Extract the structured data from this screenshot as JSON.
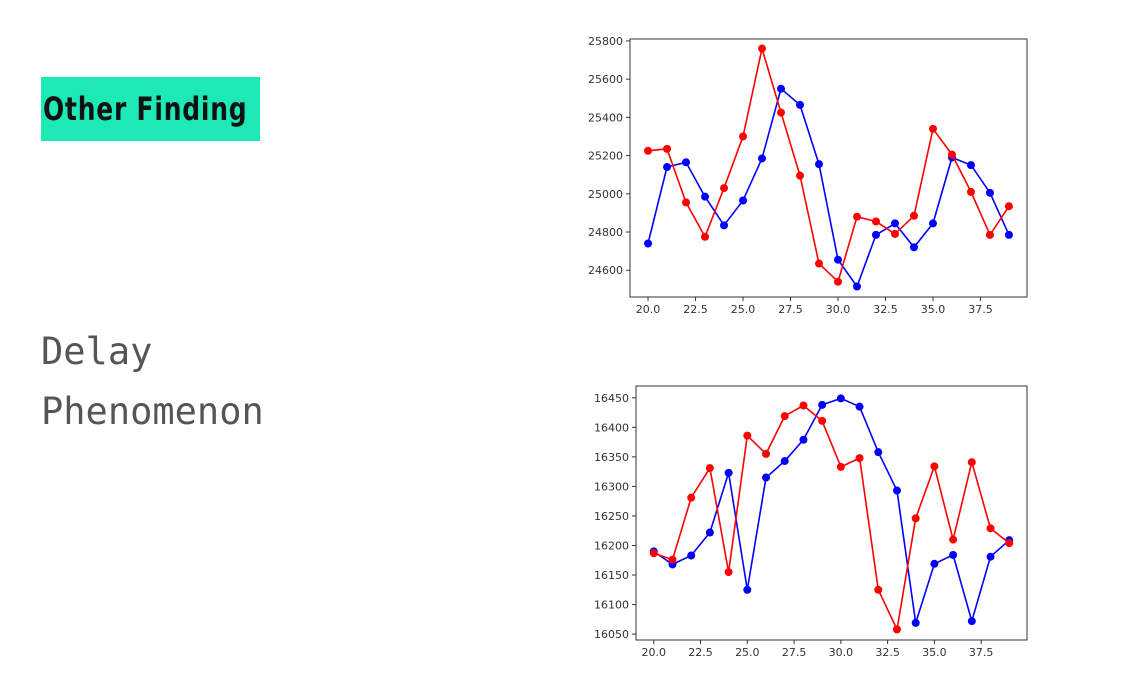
{
  "slide": {
    "heading": "Other Finding",
    "subtitle_lines": [
      "Delay",
      "Phenomenon"
    ],
    "accent_color": "#1de9b6"
  },
  "chart_data": [
    {
      "type": "line",
      "x": [
        20,
        21,
        22,
        23,
        24,
        25,
        26,
        27,
        28,
        29,
        30,
        31,
        32,
        33,
        34,
        35,
        36,
        37,
        38,
        39
      ],
      "xlim": [
        19.05,
        39.95
      ],
      "ylim": [
        24460,
        25810
      ],
      "x_ticks": [
        20.0,
        22.5,
        25.0,
        27.5,
        30.0,
        32.5,
        35.0,
        37.5
      ],
      "x_tick_labels": [
        "20.0",
        "22.5",
        "25.0",
        "27.5",
        "30.0",
        "32.5",
        "35.0",
        "37.5"
      ],
      "y_ticks": [
        24600,
        24800,
        25000,
        25200,
        25400,
        25600,
        25800
      ],
      "y_tick_labels": [
        "24600",
        "24800",
        "25000",
        "25200",
        "25400",
        "25600",
        "25800"
      ],
      "series": [
        {
          "color": "#0000ff",
          "values": [
            24740,
            25140,
            25165,
            24985,
            24835,
            24965,
            25185,
            25550,
            25465,
            25155,
            24655,
            24515,
            24785,
            24845,
            24720,
            24845,
            25190,
            25150,
            25005,
            24785
          ]
        },
        {
          "color": "#ff0000",
          "values": [
            25225,
            25235,
            24955,
            24775,
            25030,
            25300,
            25760,
            25425,
            25095,
            24635,
            24540,
            24880,
            24855,
            24790,
            24885,
            25340,
            25205,
            25010,
            24785,
            24935
          ]
        }
      ]
    },
    {
      "type": "line",
      "x": [
        20,
        21,
        22,
        23,
        24,
        25,
        26,
        27,
        28,
        29,
        30,
        31,
        32,
        33,
        34,
        35,
        36,
        37,
        38,
        39
      ],
      "xlim": [
        19.05,
        39.95
      ],
      "ylim": [
        16040,
        16470
      ],
      "x_ticks": [
        20.0,
        22.5,
        25.0,
        27.5,
        30.0,
        32.5,
        35.0,
        37.5
      ],
      "x_tick_labels": [
        "20.0",
        "22.5",
        "25.0",
        "27.5",
        "30.0",
        "32.5",
        "35.0",
        "37.5"
      ],
      "y_ticks": [
        16050,
        16100,
        16150,
        16200,
        16250,
        16300,
        16350,
        16400,
        16450
      ],
      "y_tick_labels": [
        "16050",
        "16100",
        "16150",
        "16200",
        "16250",
        "16300",
        "16350",
        "16400",
        "16450"
      ],
      "series": [
        {
          "color": "#0000ff",
          "values": [
            16190,
            16168,
            16183,
            16222,
            16323,
            16125,
            16315,
            16343,
            16379,
            16438,
            16449,
            16435,
            16358,
            16293,
            16069,
            16169,
            16184,
            16072,
            16181,
            16209
          ]
        },
        {
          "color": "#ff0000",
          "values": [
            16187,
            16176,
            16281,
            16331,
            16155,
            16386,
            16355,
            16419,
            16437,
            16411,
            16333,
            16348,
            16125,
            16058,
            16246,
            16334,
            16210,
            16341,
            16229,
            16204
          ]
        }
      ]
    }
  ]
}
